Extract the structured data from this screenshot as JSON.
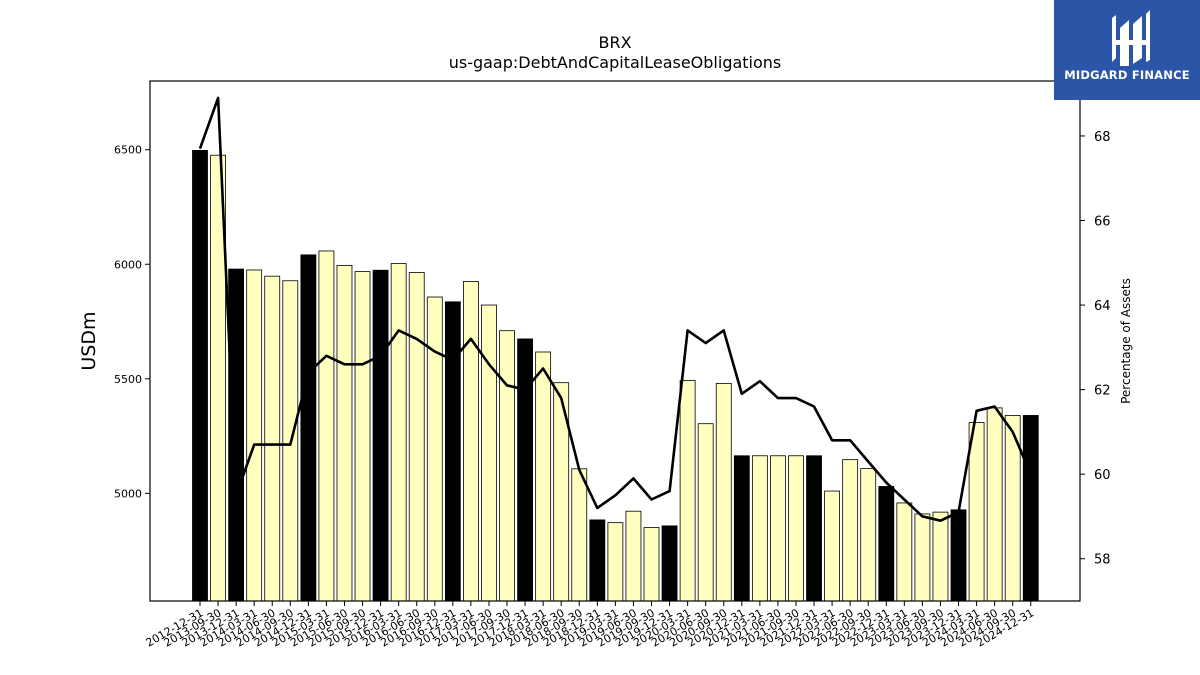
{
  "brand": {
    "name": "MIDGARD FINANCE",
    "bg_color": "#2b56a8",
    "icon": "midgard-logo-icon"
  },
  "chart_data": {
    "type": "bar",
    "title": "BRX",
    "subtitle": "us-gaap:DebtAndCapitalLeaseObligations",
    "ylabel": "USDm",
    "y2label": "Percentage of Assets",
    "ylim": [
      4530,
      6800
    ],
    "y2lim": [
      57.0,
      69.3
    ],
    "yticks": [
      5000,
      5500,
      6000,
      6500
    ],
    "y2ticks": [
      58,
      60,
      62,
      64,
      66,
      68
    ],
    "grid": false,
    "colors": {
      "annual_bar": "#000000",
      "quarter_bar": "#ffffc0",
      "line": "#000000"
    },
    "categories": [
      "2012-12-31",
      "2013-09-30",
      "2013-12-31",
      "2014-03-31",
      "2014-06-30",
      "2014-09-30",
      "2014-12-31",
      "2015-03-31",
      "2015-06-30",
      "2015-09-30",
      "2015-12-31",
      "2016-03-31",
      "2016-06-30",
      "2016-09-30",
      "2016-12-31",
      "2017-03-31",
      "2017-06-30",
      "2017-09-30",
      "2017-12-31",
      "2018-03-31",
      "2018-06-30",
      "2018-09-30",
      "2018-12-31",
      "2019-03-31",
      "2019-06-30",
      "2019-09-30",
      "2019-12-31",
      "2020-03-31",
      "2020-06-30",
      "2020-09-30",
      "2020-12-31",
      "2021-03-31",
      "2021-06-30",
      "2021-09-30",
      "2021-12-31",
      "2022-03-31",
      "2022-06-30",
      "2022-09-30",
      "2022-12-31",
      "2023-03-31",
      "2023-06-30",
      "2023-09-30",
      "2023-12-31",
      "2024-03-31",
      "2024-06-30",
      "2024-09-30",
      "2024-12-31"
    ],
    "series": [
      {
        "kind": "bar",
        "values": [
          6497,
          6476,
          5979,
          5975,
          5948,
          5928,
          6041,
          6058,
          5995,
          5968,
          5974,
          6003,
          5964,
          5857,
          5836,
          5925,
          5822,
          5710,
          5674,
          5617,
          5483,
          5107,
          4884,
          4872,
          4922,
          4851,
          4858,
          5493,
          5304,
          5480,
          5164,
          5164,
          5164,
          5164,
          5164,
          5010,
          5147,
          5108,
          5030,
          4958,
          4910,
          4918,
          4928,
          5309,
          5373,
          5340,
          5340
        ],
        "annual": [
          true,
          false,
          true,
          false,
          false,
          false,
          true,
          false,
          false,
          false,
          true,
          false,
          false,
          false,
          true,
          false,
          false,
          false,
          true,
          false,
          false,
          false,
          true,
          false,
          false,
          false,
          true,
          false,
          false,
          false,
          true,
          false,
          false,
          false,
          true,
          false,
          false,
          false,
          true,
          false,
          false,
          false,
          true,
          false,
          false,
          false,
          true
        ]
      },
      {
        "kind": "line",
        "axis": "right",
        "values": [
          67.7,
          68.9,
          59.5,
          60.7,
          60.7,
          60.7,
          62.4,
          62.8,
          62.6,
          62.6,
          62.8,
          63.4,
          63.2,
          62.9,
          62.7,
          63.2,
          62.6,
          62.1,
          62.0,
          62.5,
          61.8,
          60.1,
          59.2,
          59.5,
          59.9,
          59.4,
          59.6,
          63.4,
          63.1,
          63.4,
          61.9,
          62.2,
          61.8,
          61.8,
          61.6,
          60.8,
          60.8,
          60.3,
          59.8,
          59.4,
          59.0,
          58.9,
          59.1,
          61.5,
          61.6,
          61.0,
          60.0
        ]
      }
    ]
  }
}
